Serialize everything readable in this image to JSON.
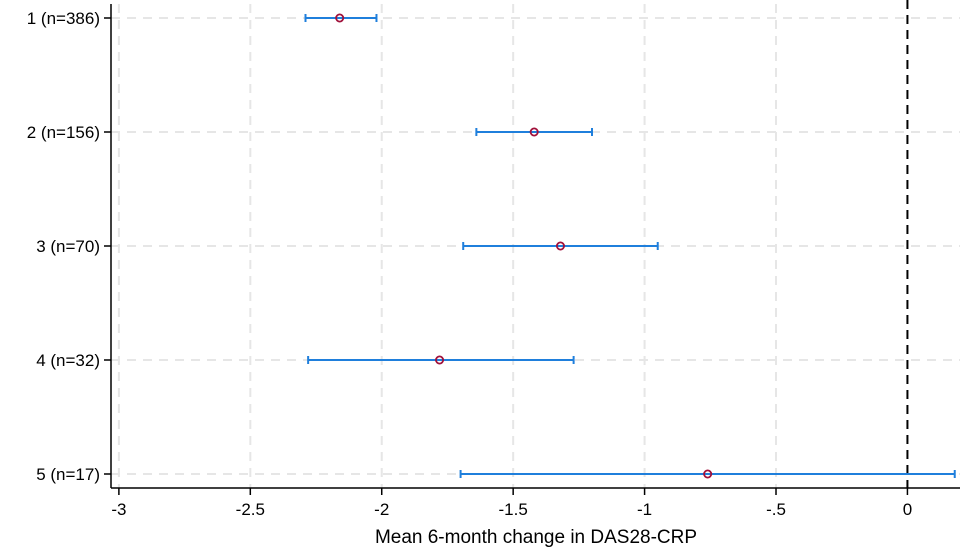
{
  "chart_data": {
    "type": "scatter",
    "title": "",
    "xlabel": "Mean 6-month change in DAS28-CRP",
    "ylabel": "",
    "xlim": [
      -3.03,
      0.2
    ],
    "x_ticks": [
      -3,
      -2.5,
      -2,
      -1.5,
      -1,
      -0.5,
      0
    ],
    "x_tick_labels": [
      "-3",
      "-2.5",
      "-2",
      "-1.5",
      "-1",
      "-.5",
      "0"
    ],
    "grid": true,
    "reference_line_x": 0,
    "categories": [
      "1 (n=386)",
      "2 (n=156)",
      "3 (n=70)",
      "4 (n=32)",
      "5 (n=17)"
    ],
    "series": [
      {
        "mean": [
          -2.16,
          -1.42,
          -1.32,
          -1.78,
          -0.76
        ],
        "ci_low": [
          -2.29,
          -1.64,
          -1.69,
          -2.28,
          -1.7
        ],
        "ci_high": [
          -2.02,
          -1.2,
          -0.95,
          -1.27,
          0.18
        ]
      }
    ],
    "colors": {
      "ci": "#1f7fdc",
      "marker_stroke": "#a0103a",
      "grid": "#e6e6e6",
      "reference": "#000000"
    }
  }
}
